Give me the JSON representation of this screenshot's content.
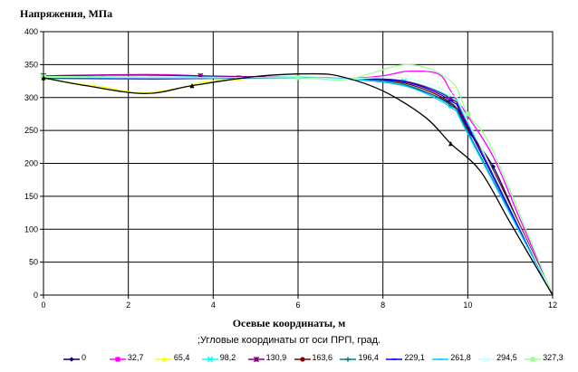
{
  "chart_data": {
    "type": "line",
    "ylabel": "Напряжения, МПа",
    "xlabel": "Осевые координаты, м",
    "legend_title": ";Угловые координаты от оси ПРП, град.",
    "xlim": [
      0,
      12
    ],
    "ylim": [
      0,
      400
    ],
    "xticks": [
      "0",
      "2",
      "4",
      "6",
      "8",
      "10",
      "12"
    ],
    "yticks": [
      "0",
      "50",
      "100",
      "150",
      "200",
      "250",
      "300",
      "350",
      "400"
    ],
    "grid": true,
    "legend_position": "bottom",
    "series": [
      {
        "name": "0",
        "color": "#000080",
        "marker": "diamond",
        "x": [
          0,
          2.4,
          4,
          6,
          7.2,
          8.5,
          9.6,
          10,
          10.6,
          11.2,
          12
        ],
        "y": [
          330,
          330,
          330,
          330,
          328,
          318,
          290,
          250,
          195,
          110,
          0
        ]
      },
      {
        "name": "32,7",
        "color": "#ff00ff",
        "marker": "square",
        "x": [
          0,
          2.4,
          3.7,
          4.6,
          6,
          7.2,
          8,
          8.6,
          9.3,
          9.6,
          10,
          10.6,
          11.2,
          12
        ],
        "y": [
          333,
          335,
          333,
          330,
          330,
          329,
          333,
          340,
          336,
          310,
          272,
          210,
          120,
          0
        ]
      },
      {
        "name": "65,4",
        "color": "#ffff00",
        "marker": "triangle",
        "x": [
          0,
          0.4,
          0.9,
          1.4,
          1.9,
          2.4,
          3.2,
          4,
          6,
          7.2,
          8.5,
          9.6,
          10,
          12
        ],
        "y": [
          330,
          325,
          320,
          316,
          310,
          307,
          314,
          325,
          330,
          328,
          325,
          300,
          260,
          0
        ]
      },
      {
        "name": "98,2",
        "color": "#00ffff",
        "marker": "cross",
        "x": [
          0,
          0.4,
          0.9,
          1.4,
          1.9,
          2.4,
          3.2,
          4,
          6,
          7.2,
          8.5,
          9.6,
          10,
          12
        ],
        "y": [
          333,
          332,
          332,
          331,
          331,
          330,
          331,
          331,
          331,
          329,
          325,
          300,
          262,
          0
        ]
      },
      {
        "name": "130,9",
        "color": "#800080",
        "marker": "star",
        "x": [
          0,
          1.4,
          2.4,
          3.7,
          6,
          7.2,
          8.5,
          9.6,
          10,
          12
        ],
        "y": [
          333,
          334,
          334,
          333,
          330,
          328,
          325,
          298,
          258,
          0
        ]
      },
      {
        "name": "163,6",
        "color": "#800000",
        "marker": "circle",
        "x": [
          0,
          2.4,
          4,
          6,
          7.2,
          8.5,
          9.6,
          10,
          10.6,
          12
        ],
        "y": [
          330,
          330,
          330,
          330,
          328,
          322,
          292,
          252,
          190,
          0
        ]
      },
      {
        "name": "196,4",
        "color": "#008080",
        "marker": "plus",
        "x": [
          0,
          2.4,
          4,
          6,
          7.2,
          8.5,
          9.6,
          10,
          12
        ],
        "y": [
          329,
          328,
          329,
          330,
          328,
          320,
          288,
          248,
          0
        ]
      },
      {
        "name": "229,1",
        "color": "#0000ff",
        "marker": "dash",
        "x": [
          0,
          1.4,
          2.4,
          3.7,
          6,
          7.2,
          8.5,
          9.6,
          10,
          12
        ],
        "y": [
          331,
          330,
          329,
          329,
          330,
          328,
          324,
          295,
          255,
          0
        ]
      },
      {
        "name": "261,8",
        "color": "#00ccff",
        "marker": "dash",
        "x": [
          0,
          2.4,
          4,
          6,
          7.2,
          8.5,
          9.6,
          10,
          12
        ],
        "y": [
          332,
          331,
          330,
          330,
          328,
          318,
          285,
          245,
          0
        ]
      },
      {
        "name": "294,5",
        "color": "#ccffff",
        "marker": "cross",
        "x": [
          0,
          2.4,
          4,
          6,
          7.2,
          8.5,
          9.6,
          10,
          12
        ],
        "y": [
          331,
          330,
          330,
          330,
          328,
          330,
          305,
          265,
          0
        ]
      },
      {
        "name": "327,3",
        "color": "#99ff99",
        "marker": "square",
        "x": [
          0,
          2.4,
          4,
          6,
          7.2,
          8.6,
          9.6,
          10,
          10.6,
          12
        ],
        "y": [
          332,
          331,
          330,
          330,
          328,
          350,
          325,
          275,
          218,
          0
        ]
      },
      {
        "name": "",
        "color": "#000000",
        "marker": "triangle",
        "x": [
          0,
          1,
          2.4,
          3.5,
          5,
          6.3,
          7,
          8,
          9,
          9.6,
          10.3,
          11,
          12
        ],
        "y": [
          330,
          318,
          306,
          318,
          332,
          336,
          332,
          310,
          270,
          230,
          188,
          110,
          0
        ]
      }
    ]
  }
}
